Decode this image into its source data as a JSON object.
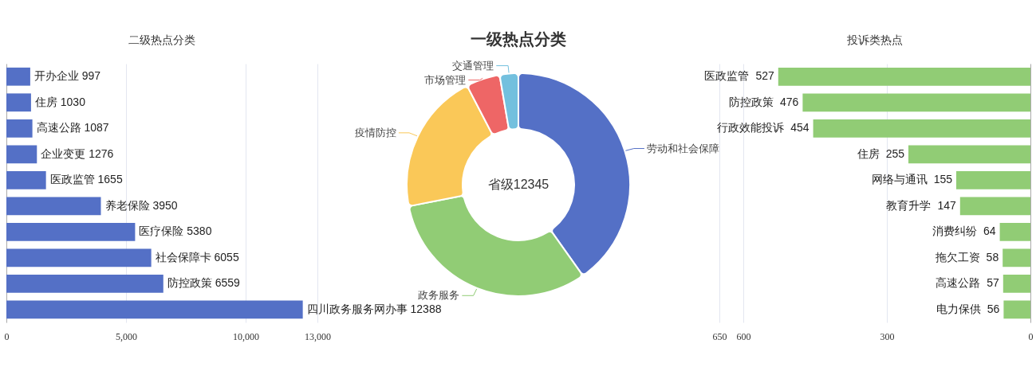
{
  "chart_data": [
    {
      "type": "bar",
      "orientation": "horizontal",
      "title": "二级热点分类",
      "categories": [
        null,
        null,
        null,
        null,
        null,
        null,
        null,
        null,
        null,
        null
      ],
      "values": [
        997,
        1030,
        1087,
        1276,
        1655,
        3950,
        5380,
        6055,
        6559,
        12388
      ],
      "value_labels": [
        "开办企业  997",
        "住房  1030",
        "高速公路  1087",
        "企业变更  1276",
        "医政监管   1655",
        "养老保险  3950",
        "医疗保险  5380",
        "社会保障卡  6055",
        "防控政策  6559",
        "四川政务服务网办事  12388"
      ],
      "color": "#5470c6",
      "xlim": [
        0,
        13000
      ],
      "xticks": [
        0,
        {
          "value": 5000,
          "label": "5,000"
        },
        {
          "value": 10000,
          "label": "10,000"
        },
        {
          "value": 13000,
          "label": "13,000"
        }
      ],
      "grid": "x",
      "tick_labels": "x"
    },
    {
      "type": "donut",
      "title": "一级热点分类",
      "categories": [
        "劳动和社会保障",
        "政务服务",
        "疫情防控",
        "市场管理",
        "交通管理"
      ],
      "values": [
        40.2,
        31.7,
        20.5,
        4.9,
        2.7
      ],
      "colors": [
        "#5470c6",
        "#91cc75",
        "#fac858",
        "#ee6666",
        "#73c0de"
      ],
      "annotations": [
        "省级12345"
      ]
    },
    {
      "type": "bar",
      "orientation": "horizontal",
      "title": "投诉类热点",
      "categories": [
        "医政监管",
        "防控政策",
        "行政效能投诉",
        "住房",
        "网络与通讯",
        "教育升学",
        "消费纠纷",
        "拖欠工资",
        "高速公路",
        "电力保供"
      ],
      "values": [
        527,
        476,
        454,
        255,
        155,
        147,
        64,
        58,
        57,
        56
      ],
      "color": "#91cc75",
      "xlim": [
        650,
        0
      ],
      "xticks": [
        650,
        600,
        300,
        0
      ],
      "grid": "x",
      "data_labels": true,
      "tick_labels": "x"
    }
  ]
}
